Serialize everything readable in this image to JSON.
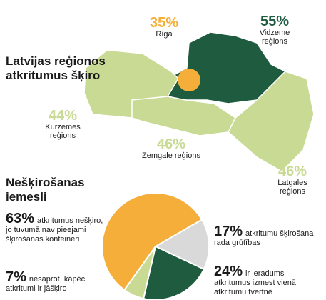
{
  "map": {
    "title": "Latvijas reģionos atkritumus šķiro",
    "regions": [
      {
        "name": "Rīga",
        "value": 35,
        "value_label": "35%",
        "color": "#f6ae3a"
      },
      {
        "name": "Vidzeme reģions",
        "value": 55,
        "value_label": "55%",
        "color": "#1f5c3f"
      },
      {
        "name": "Kurzemes reģions",
        "value": 44,
        "value_label": "44%",
        "color": "#c8da93"
      },
      {
        "name": "Zemgale reģions",
        "value": 46,
        "value_label": "46%",
        "color": "#c8da93"
      },
      {
        "name": "Latgales reģions",
        "value": 46,
        "value_label": "46%",
        "color": "#c8da93"
      }
    ]
  },
  "chart_data": {
    "type": "pie",
    "title": "Nešķirošanas iemesli",
    "categories": [
      "atkritumus nešķiro, jo tuvumā nav pieejami šķirošanas konteineri",
      "nesaprot, kāpēc atkritumi ir jāšķiro",
      "atkritumu šķirošana rada grūtības",
      "ir ieradums atkritumus izmest vienā atkritumu tvertnē"
    ],
    "values": [
      63,
      7,
      17,
      24
    ],
    "value_labels": [
      "63%",
      "7%",
      "17%",
      "24%"
    ],
    "colors": [
      "#f6ae3a",
      "#c8da93",
      "#d9d9d9",
      "#1f5c3f"
    ]
  }
}
